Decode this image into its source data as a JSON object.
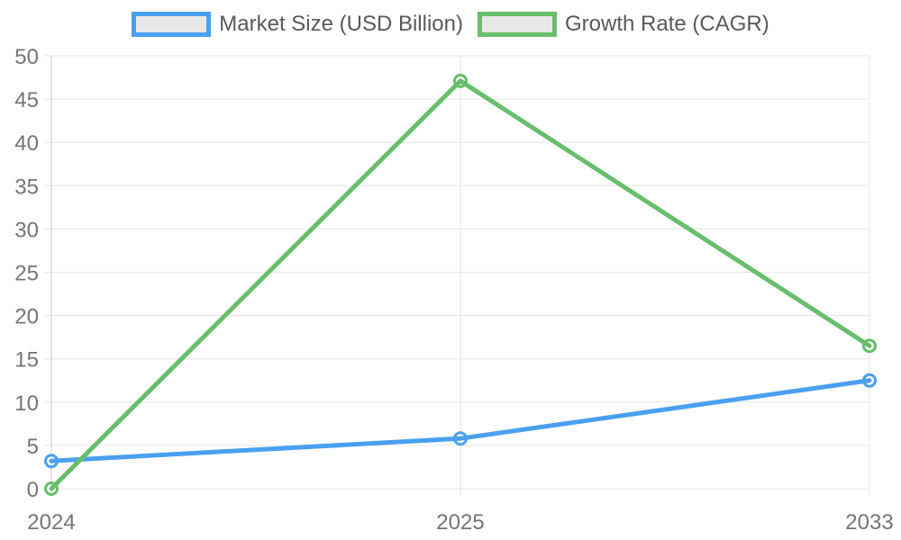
{
  "chart_data": {
    "type": "line",
    "title": "",
    "categories": [
      "2024",
      "2025",
      "2033"
    ],
    "series": [
      {
        "name": "Market Size (USD Billion)",
        "color": "#4aa0ef",
        "values": [
          3.2,
          5.8,
          12.5
        ]
      },
      {
        "name": "Growth Rate (CAGR)",
        "color": "#67be6b",
        "values": [
          0,
          47.1,
          16.5
        ]
      }
    ],
    "xlabel": "",
    "ylabel": "",
    "ylim": [
      0,
      50
    ],
    "yticks": [
      0,
      5,
      10,
      15,
      20,
      25,
      30,
      35,
      40,
      45,
      50
    ],
    "grid": true,
    "legend_position": "top",
    "marker": "hollow-circle",
    "line_width": 5,
    "colors": {
      "gridline": "#e6e6e6",
      "axis_line": "#cccccc",
      "tick_label": "#757575",
      "legend_text": "#595959",
      "legend_swatch_fill": "#e8e8e8"
    }
  }
}
